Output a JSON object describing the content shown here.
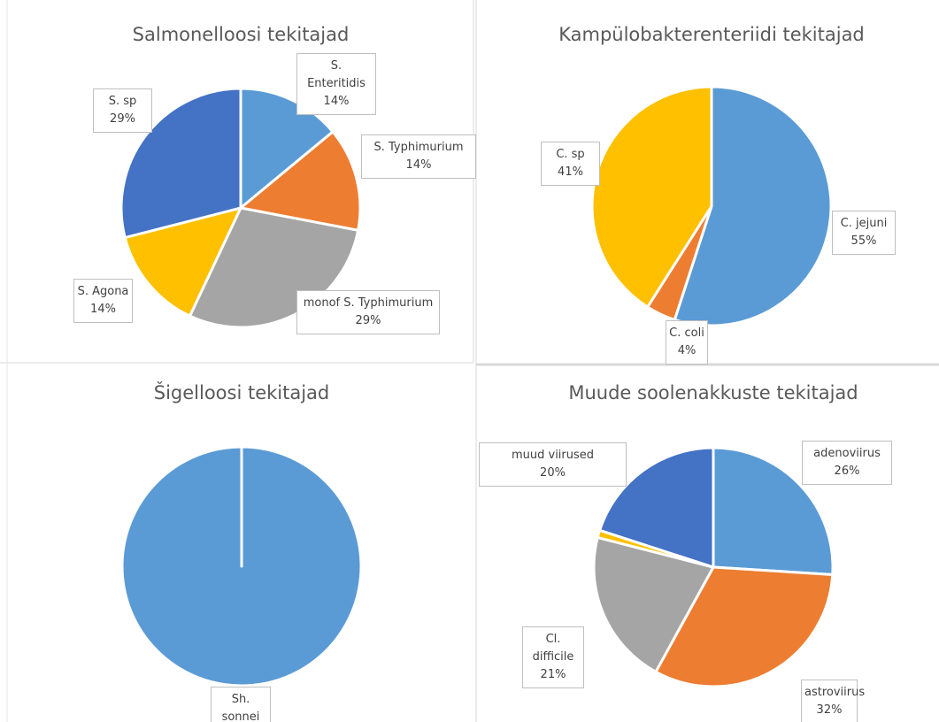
{
  "chart_data": [
    {
      "type": "pie",
      "title": "Salmonelloosi tekitajad",
      "categories": [
        "S. Enteritidis",
        "S. Typhimurium",
        "monof S. Typhimurium",
        "S. Agona",
        "S. sp"
      ],
      "values": [
        14,
        14,
        29,
        14,
        29
      ],
      "value_labels": [
        "14%",
        "14%",
        "29%",
        "14%",
        "29%"
      ],
      "colors": [
        "#5b9bd5",
        "#ed7d31",
        "#a5a5a5",
        "#ffc000",
        "#4472c4"
      ]
    },
    {
      "type": "pie",
      "title": "Kampülobakterenteriidi tekitajad",
      "categories": [
        "C. jejuni",
        "C. coli",
        "C. sp"
      ],
      "values": [
        55,
        4,
        41
      ],
      "value_labels": [
        "55%",
        "4%",
        "41%"
      ],
      "colors": [
        "#5b9bd5",
        "#ed7d31",
        "#ffc000"
      ]
    },
    {
      "type": "pie",
      "title": "Šigelloosi tekitajad",
      "categories": [
        "Sh. sonnei"
      ],
      "values": [
        100
      ],
      "value_labels": [
        "100%"
      ],
      "colors": [
        "#5b9bd5"
      ]
    },
    {
      "type": "pie",
      "title": "Muude soolenakkuste tekitajad",
      "categories": [
        "adenoviirus",
        "astroviirus",
        "Cl. difficile",
        null,
        "muud viirused"
      ],
      "values": [
        26,
        32,
        21,
        1,
        20
      ],
      "value_labels": [
        "26%",
        "32%",
        "21%",
        null,
        "20%"
      ],
      "colors": [
        "#5b9bd5",
        "#ed7d31",
        "#a5a5a5",
        "#ffc000",
        "#4472c4"
      ]
    }
  ]
}
